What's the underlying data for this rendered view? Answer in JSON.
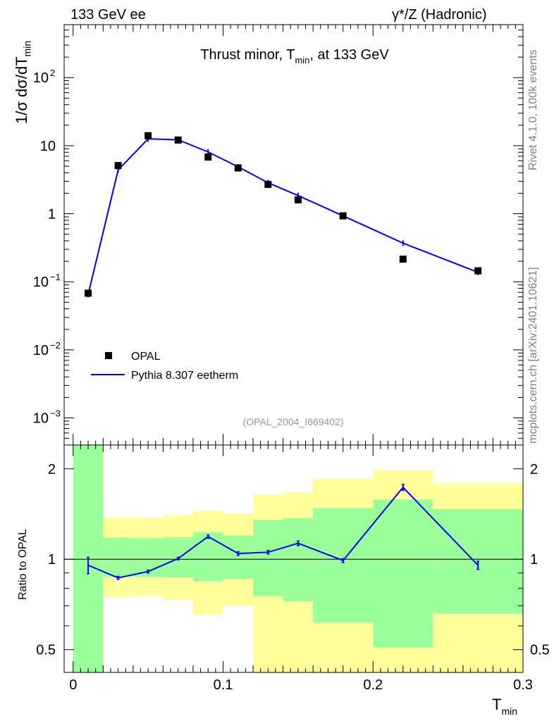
{
  "header": {
    "left": "133 GeV ee",
    "right": "γ*/Z (Hadronic)"
  },
  "side_text": {
    "version": "Rivet 4.1.0,  100k events",
    "source": "mcplots.cern.ch [arXiv:2401.10621]"
  },
  "chart_data": [
    {
      "type": "scatter",
      "panel": "main",
      "title": "Thrust minor, T_min, at 133 GeV",
      "title_parts": {
        "pre": "Thrust minor, T",
        "sub": "min",
        "post": ", at 133 GeV"
      },
      "ylabel": "1/σ  dσ/dT_min",
      "ylabel_parts": {
        "pre": "1/σ  dσ/dT",
        "sub": "min"
      },
      "yscale": "log",
      "ylim": [
        0.0004,
        600
      ],
      "xlim": [
        -0.006,
        0.3
      ],
      "yticks": [
        {
          "value": 0.001,
          "base": "10",
          "exp": "−3"
        },
        {
          "value": 0.01,
          "base": "10",
          "exp": "−2"
        },
        {
          "value": 0.1,
          "base": "10",
          "exp": "−1"
        },
        {
          "value": 1,
          "label": "1"
        },
        {
          "value": 10,
          "label": "10"
        },
        {
          "value": 100,
          "base": "10",
          "exp": "2"
        }
      ],
      "analysis_id": "(OPAL_2004_I669402)",
      "legend": {
        "position": "lower-left",
        "entries": [
          "OPAL",
          "Pythia 8.307 eetherm"
        ]
      },
      "series": [
        {
          "name": "OPAL",
          "marker": "square",
          "color": "#000000",
          "x": [
            0.01,
            0.03,
            0.05,
            0.07,
            0.09,
            0.11,
            0.13,
            0.15,
            0.18,
            0.22,
            0.27
          ],
          "y": [
            0.068,
            5.1,
            14.0,
            12.1,
            6.8,
            4.7,
            2.7,
            1.6,
            0.93,
            0.215,
            0.145
          ]
        },
        {
          "name": "Pythia 8.307 eetherm",
          "marker": "line",
          "color": "#0000ff",
          "x": [
            0.01,
            0.03,
            0.05,
            0.07,
            0.09,
            0.11,
            0.13,
            0.15,
            0.18,
            0.22,
            0.27
          ],
          "y": [
            0.065,
            4.4,
            12.6,
            12.2,
            8.1,
            4.9,
            2.85,
            1.85,
            0.93,
            0.37,
            0.138
          ]
        }
      ]
    },
    {
      "type": "line",
      "panel": "ratio",
      "ylabel": "Ratio to OPAL",
      "yscale": "log",
      "ylim": [
        0.42,
        2.4
      ],
      "yticks": [
        {
          "value": 0.5,
          "label": "0.5"
        },
        {
          "value": 1,
          "label": "1"
        },
        {
          "value": 2,
          "label": "2"
        }
      ],
      "xlabel": "T_min",
      "xlabel_parts": {
        "pre": "T",
        "sub": "min"
      },
      "xlim": [
        -0.006,
        0.3
      ],
      "xticks": [
        {
          "value": 0,
          "label": "0"
        },
        {
          "value": 0.1,
          "label": "0.1"
        },
        {
          "value": 0.2,
          "label": "0.2"
        },
        {
          "value": 0.3,
          "label": "0.3"
        }
      ],
      "bands": {
        "edges": [
          0.0,
          0.02,
          0.04,
          0.06,
          0.08,
          0.1,
          0.12,
          0.14,
          0.16,
          0.2,
          0.24,
          0.3
        ],
        "yellow_low": [
          0.42,
          0.75,
          0.755,
          0.735,
          0.655,
          0.7,
          0.385,
          0.37,
          0.37,
          0.37,
          0.37
        ],
        "yellow_high": [
          2.4,
          1.38,
          1.375,
          1.4,
          1.45,
          1.42,
          1.64,
          1.67,
          1.85,
          1.98,
          1.79
        ],
        "green_low": [
          0.42,
          0.875,
          0.875,
          0.87,
          0.845,
          0.86,
          0.755,
          0.725,
          0.615,
          0.51,
          0.66
        ],
        "green_high": [
          2.4,
          1.18,
          1.175,
          1.185,
          1.23,
          1.2,
          1.35,
          1.37,
          1.48,
          1.58,
          1.47
        ]
      },
      "series": [
        {
          "name": "Pythia 8.307 eetherm / OPAL",
          "color": "#0000ff",
          "x": [
            0.01,
            0.03,
            0.05,
            0.07,
            0.09,
            0.11,
            0.13,
            0.15,
            0.18,
            0.22,
            0.27
          ],
          "y": [
            0.955,
            0.867,
            0.91,
            1.005,
            1.19,
            1.045,
            1.055,
            1.13,
            0.99,
            1.735,
            0.955
          ],
          "err": [
            0.06,
            0.01,
            0.01,
            0.01,
            0.015,
            0.015,
            0.015,
            0.02,
            0.015,
            0.04,
            0.03
          ]
        }
      ]
    }
  ]
}
